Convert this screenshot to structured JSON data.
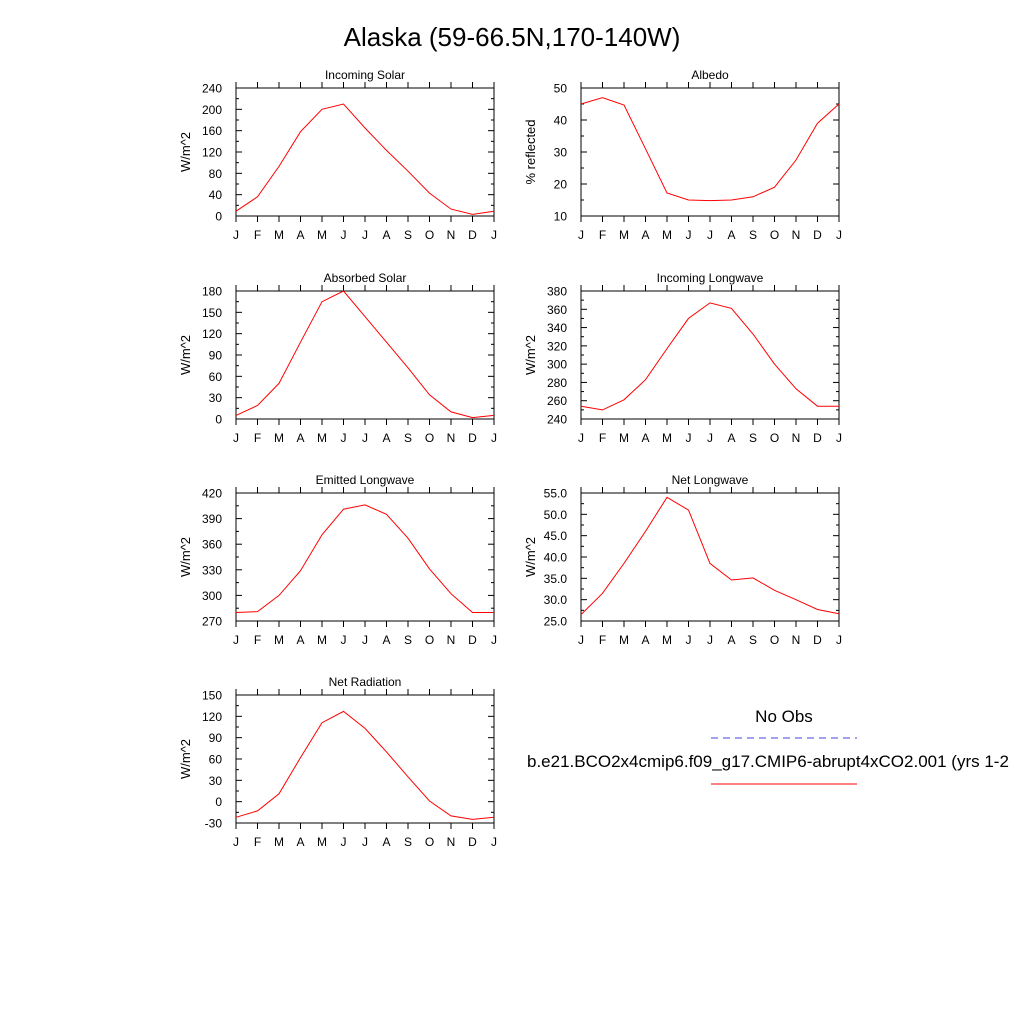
{
  "title": "Alaska (59-66.5N,170-140W)",
  "legend": {
    "obs_label": "No Obs",
    "obs_color": "#4444dd",
    "model_label": "b.e21.BCO2x4cmip6.f09_g17.CMIP6-abrupt4xCO2.001 (yrs 1-2",
    "model_color": "#ff0000"
  },
  "chart_data": [
    {
      "type": "line",
      "title": "Incoming Solar",
      "ylabel": "W/m^2",
      "x": [
        "J",
        "F",
        "M",
        "A",
        "M",
        "J",
        "J",
        "A",
        "S",
        "O",
        "N",
        "D",
        "J"
      ],
      "ylim": [
        0,
        240
      ],
      "yticks": [
        "0",
        "40",
        "80",
        "120",
        "160",
        "200",
        "240"
      ],
      "series": [
        {
          "values": [
            9,
            36,
            93,
            158,
            200,
            210,
            165,
            123,
            84,
            43,
            13,
            3,
            9
          ]
        }
      ]
    },
    {
      "type": "line",
      "title": "Albedo",
      "ylabel": "% reflected",
      "x": [
        "J",
        "F",
        "M",
        "A",
        "M",
        "J",
        "J",
        "A",
        "S",
        "O",
        "N",
        "D",
        "J"
      ],
      "ylim": [
        10,
        50
      ],
      "yticks": [
        "10",
        "20",
        "30",
        "40",
        "50"
      ],
      "series": [
        {
          "values": [
            45,
            47,
            44.7,
            31,
            17.2,
            15,
            14.8,
            15,
            16,
            19,
            27.5,
            39,
            45
          ]
        }
      ]
    },
    {
      "type": "line",
      "title": "Absorbed Solar",
      "ylabel": "W/m^2",
      "x": [
        "J",
        "F",
        "M",
        "A",
        "M",
        "J",
        "J",
        "A",
        "S",
        "O",
        "N",
        "D",
        "J"
      ],
      "ylim": [
        0,
        180
      ],
      "yticks": [
        "0",
        "30",
        "60",
        "90",
        "120",
        "150",
        "180"
      ],
      "series": [
        {
          "values": [
            5,
            19,
            50,
            108,
            165,
            180,
            144,
            108,
            72,
            34,
            10,
            2,
            5
          ]
        }
      ]
    },
    {
      "type": "line",
      "title": "Incoming Longwave",
      "ylabel": "W/m^2",
      "x": [
        "J",
        "F",
        "M",
        "A",
        "M",
        "J",
        "J",
        "A",
        "S",
        "O",
        "N",
        "D",
        "J"
      ],
      "ylim": [
        240,
        380
      ],
      "yticks": [
        "240",
        "260",
        "280",
        "300",
        "320",
        "340",
        "360",
        "380"
      ],
      "series": [
        {
          "values": [
            254,
            250,
            261,
            283,
            317,
            350,
            367,
            361,
            333,
            300,
            273,
            254,
            254
          ]
        }
      ]
    },
    {
      "type": "line",
      "title": "Emitted Longwave",
      "ylabel": "W/m^2",
      "x": [
        "J",
        "F",
        "M",
        "A",
        "M",
        "J",
        "J",
        "A",
        "S",
        "O",
        "N",
        "D",
        "J"
      ],
      "ylim": [
        270,
        420
      ],
      "yticks": [
        "270",
        "300",
        "330",
        "360",
        "390",
        "420"
      ],
      "series": [
        {
          "values": [
            280,
            281,
            300,
            329,
            371,
            401,
            406,
            395,
            367,
            331,
            302,
            280,
            280
          ]
        }
      ]
    },
    {
      "type": "line",
      "title": "Net Longwave",
      "ylabel": "W/m^2",
      "x": [
        "J",
        "F",
        "M",
        "A",
        "M",
        "J",
        "J",
        "A",
        "S",
        "O",
        "N",
        "D",
        "J"
      ],
      "ylim": [
        25,
        55
      ],
      "yticks": [
        "25.0",
        "30.0",
        "35.0",
        "40.0",
        "45.0",
        "50.0",
        "55.0"
      ],
      "series": [
        {
          "values": [
            26.5,
            31.5,
            38.5,
            46,
            54,
            51,
            38.5,
            34.6,
            35.1,
            32.2,
            30,
            27.7,
            26.7
          ]
        }
      ]
    },
    {
      "type": "line",
      "title": "Net Radiation",
      "ylabel": "W/m^2",
      "x": [
        "J",
        "F",
        "M",
        "A",
        "M",
        "J",
        "J",
        "A",
        "S",
        "O",
        "N",
        "D",
        "J"
      ],
      "ylim": [
        -30,
        150
      ],
      "yticks": [
        "-30",
        "0",
        "30",
        "60",
        "90",
        "120",
        "150"
      ],
      "series": [
        {
          "values": [
            -22,
            -13,
            11,
            62,
            111,
            127,
            103,
            70,
            35,
            1,
            -20,
            -25,
            -22
          ]
        }
      ]
    }
  ]
}
